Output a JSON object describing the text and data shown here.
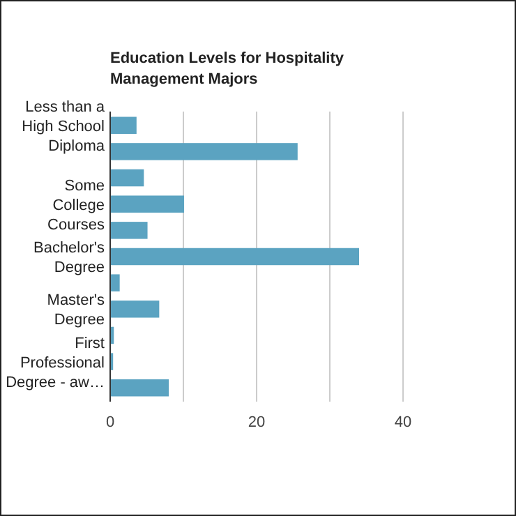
{
  "chart_data": {
    "type": "bar",
    "orientation": "horizontal",
    "title": "Education Levels for Hospitality Management Majors",
    "categories": [
      "Less than a High School Diploma",
      null,
      null,
      "Some College Courses",
      null,
      "Bachelor's Degree",
      null,
      "Master's Degree",
      null,
      "First Professional Degree - aw…",
      null
    ],
    "values": [
      3.6,
      25.6,
      4.6,
      10.1,
      5.1,
      34.0,
      1.3,
      6.7,
      0.5,
      0.4,
      8.0
    ],
    "color": "#5ba3c1",
    "xlim": [
      0,
      40
    ],
    "xticks": [
      0,
      {
        "value": 10,
        "label": null
      },
      20,
      {
        "value": 30,
        "label": null
      },
      40
    ],
    "grid": "x"
  }
}
